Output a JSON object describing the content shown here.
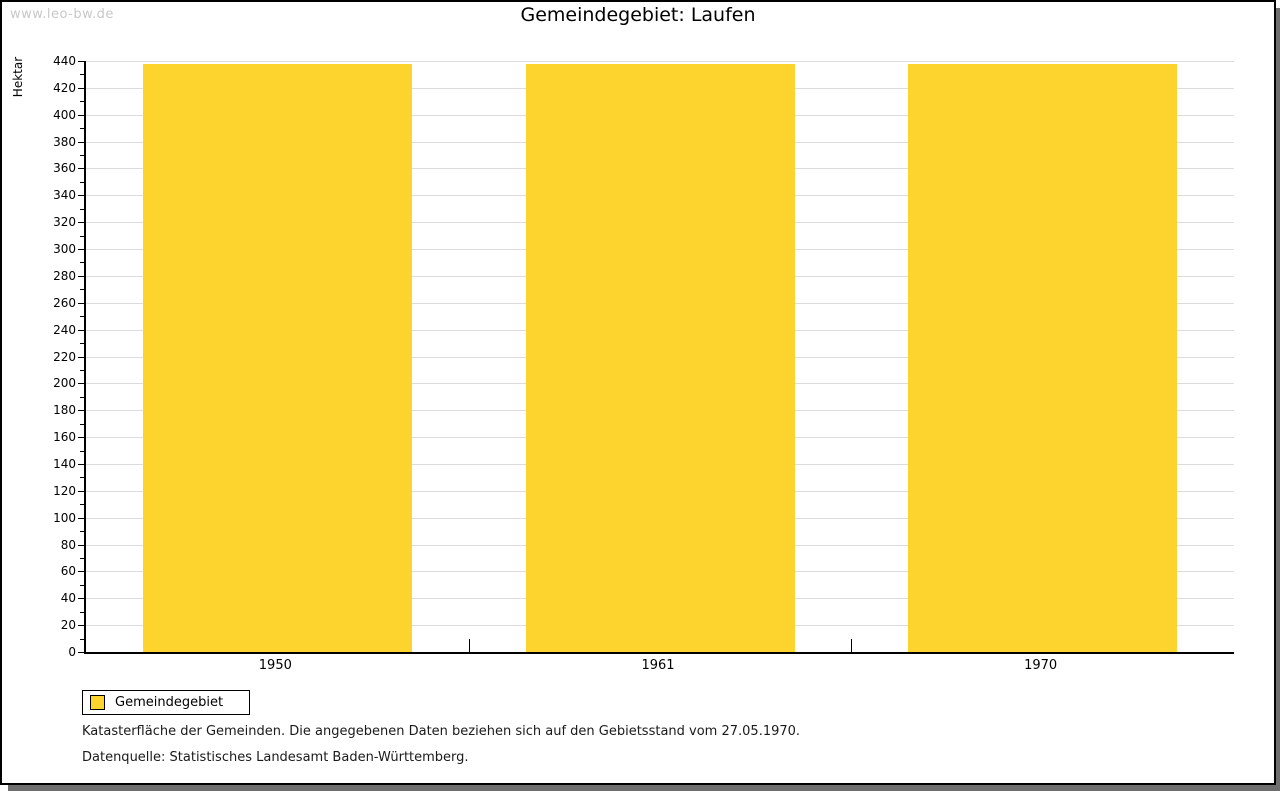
{
  "watermark": "www.leo-bw.de",
  "title": "Gemeindegebiet: Laufen",
  "chart_data": {
    "type": "bar",
    "title": "Gemeindegebiet: Laufen",
    "categories": [
      "1950",
      "1961",
      "1970"
    ],
    "series": [
      {
        "name": "Gemeindegebiet",
        "values": [
          438,
          438,
          438
        ]
      }
    ],
    "xlabel": "",
    "ylabel": "Hektar",
    "ylim": [
      0,
      440
    ],
    "ytick_step": 20,
    "yminor_step": 10,
    "grid": true,
    "bar_color": "#fdd32d",
    "gridline_color": "#dcdcdc",
    "legend_position": "bottom-left"
  },
  "legend": {
    "items": [
      {
        "label": "Gemeindegebiet",
        "color": "#fdd32d"
      }
    ]
  },
  "footer": {
    "line1": "Katasterfläche der Gemeinden. Die angegebenen Daten beziehen sich auf den Gebietsstand vom 27.05.1970.",
    "line2": "Datenquelle: Statistisches Landesamt Baden-Württemberg."
  }
}
